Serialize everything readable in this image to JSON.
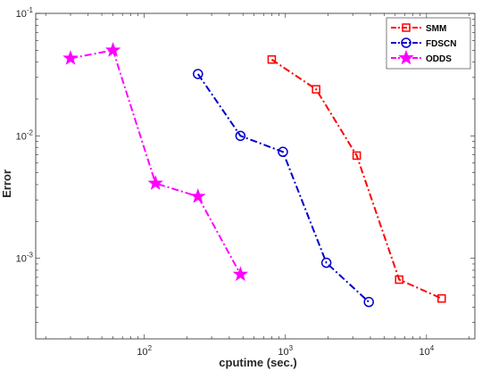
{
  "chart_data": {
    "type": "line",
    "xlabel": "cputime (sec.)",
    "ylabel": "Error",
    "xscale": "log",
    "yscale": "log",
    "xlim": [
      17,
      22000
    ],
    "ylim": [
      0.00022,
      0.1
    ],
    "grid": false,
    "legend_position": "top-right",
    "x_ticks": [
      {
        "value": 100,
        "base": "10",
        "exp": "2"
      },
      {
        "value": 1000,
        "base": "10",
        "exp": "3"
      },
      {
        "value": 10000,
        "base": "10",
        "exp": "4"
      }
    ],
    "y_ticks": [
      {
        "value": 0.001,
        "base": "10",
        "exp": "-3"
      },
      {
        "value": 0.01,
        "base": "10",
        "exp": "-2"
      },
      {
        "value": 0.1,
        "base": "10",
        "exp": "-1"
      }
    ],
    "series": [
      {
        "name": "SMM",
        "color": "#ff0000",
        "marker": "square",
        "line_style": "dash-dot",
        "x": [
          800,
          1650,
          3200,
          6400,
          12800
        ],
        "y": [
          0.042,
          0.024,
          0.0069,
          0.00067,
          0.00047
        ]
      },
      {
        "name": "FDSCN",
        "color": "#0000cc",
        "marker": "circle",
        "line_style": "dash-dot",
        "x": [
          240,
          480,
          960,
          1950,
          3900
        ],
        "y": [
          0.032,
          0.01,
          0.0074,
          0.00092,
          0.00044
        ]
      },
      {
        "name": "ODDS",
        "color": "#ff00ff",
        "marker": "star",
        "line_style": "dash-dot",
        "x": [
          30,
          60,
          120,
          240,
          480
        ],
        "y": [
          0.043,
          0.05,
          0.0041,
          0.0032,
          0.00074
        ]
      }
    ]
  }
}
